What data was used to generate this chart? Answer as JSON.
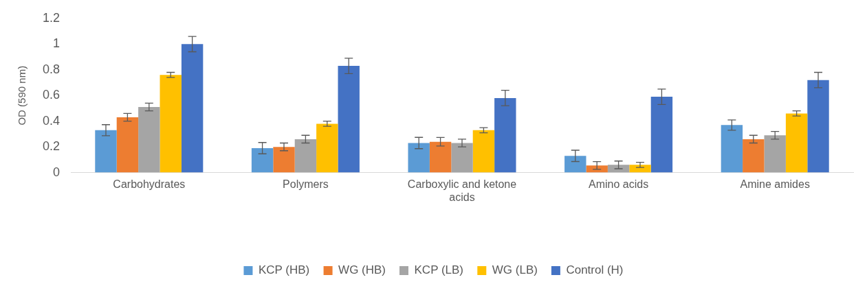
{
  "chart_data": {
    "type": "bar",
    "ylabel": "OD (590 nm)",
    "categories": [
      "Carbohydrates",
      "Polymers",
      "Carboxylic and ketone acids",
      "Amino acids",
      "Amine amides"
    ],
    "ylim": [
      0,
      1.2
    ],
    "yticks": [
      0,
      0.2,
      0.4,
      0.6,
      0.8,
      1,
      1.2
    ],
    "grid": false,
    "legend": "bottom",
    "series": [
      {
        "name": "KCP (HB)",
        "color": "#5b9bd5",
        "values": [
          0.33,
          0.19,
          0.23,
          0.13,
          0.37
        ],
        "errors": [
          0.043,
          0.044,
          0.044,
          0.044,
          0.04
        ]
      },
      {
        "name": "WG (HB)",
        "color": "#ed7d31",
        "values": [
          0.43,
          0.2,
          0.24,
          0.055,
          0.26
        ],
        "errors": [
          0.03,
          0.03,
          0.033,
          0.03,
          0.03
        ]
      },
      {
        "name": "KCP (LB)",
        "color": "#a5a5a5",
        "values": [
          0.51,
          0.26,
          0.23,
          0.06,
          0.29
        ],
        "errors": [
          0.03,
          0.03,
          0.03,
          0.03,
          0.03
        ]
      },
      {
        "name": "WG (LB)",
        "color": "#ffc000",
        "values": [
          0.76,
          0.38,
          0.33,
          0.06,
          0.46
        ],
        "errors": [
          0.02,
          0.02,
          0.02,
          0.02,
          0.02
        ]
      },
      {
        "name": "Control (H)",
        "color": "#4472c4",
        "values": [
          1.0,
          0.83,
          0.58,
          0.59,
          0.72
        ],
        "errors": [
          0.06,
          0.06,
          0.06,
          0.06,
          0.06
        ]
      }
    ]
  }
}
